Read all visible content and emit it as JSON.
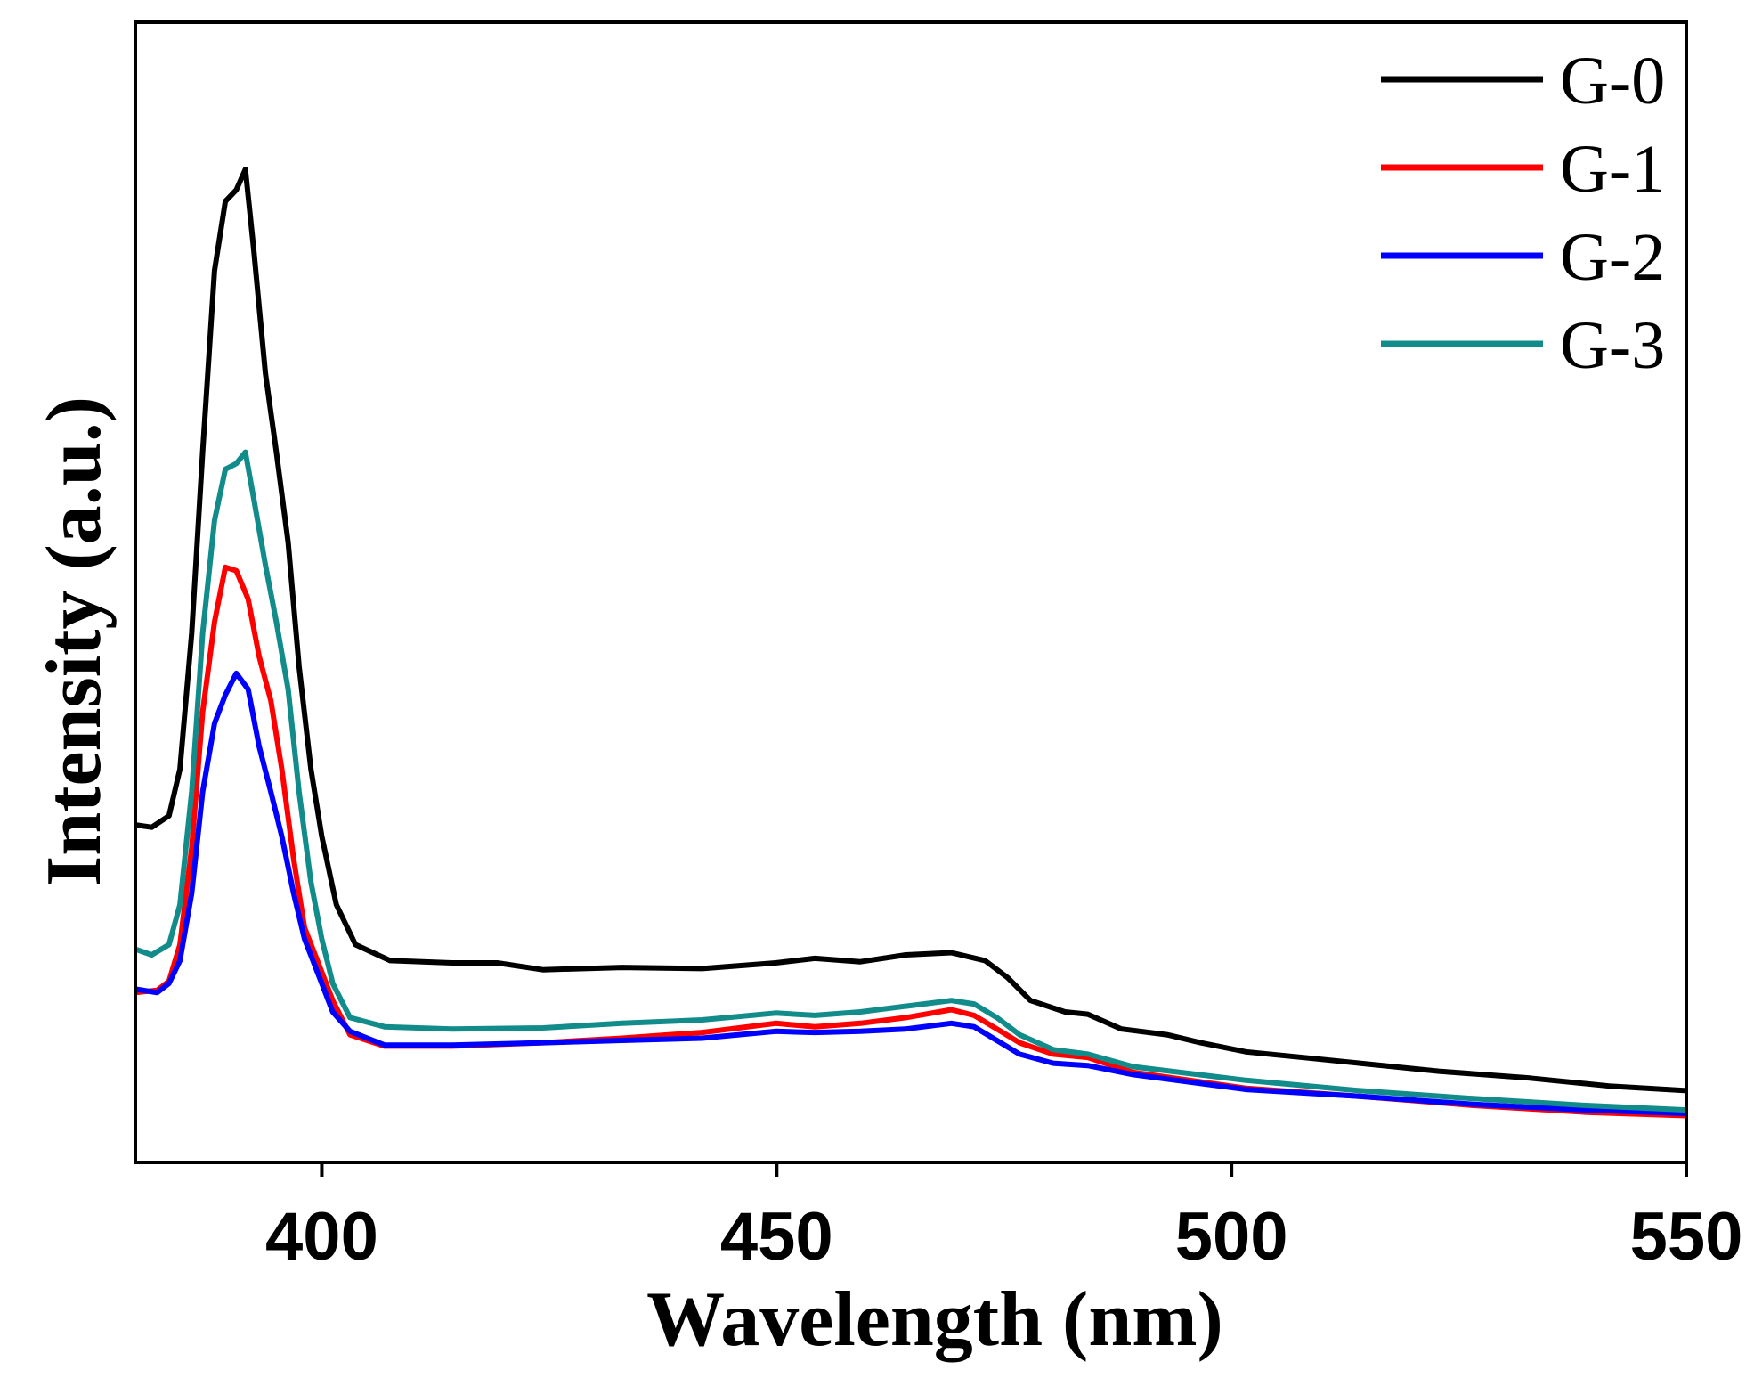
{
  "chart_data": {
    "type": "line",
    "xlabel": "Wavelength (nm)",
    "ylabel": "Intensity (a.u.)",
    "xlim": [
      379.5,
      550
    ],
    "ylim": [
      0,
      100
    ],
    "xticks": [
      400,
      450,
      500,
      550
    ],
    "xtick_labels": [
      "400",
      "450",
      "500",
      "550"
    ],
    "yticks": [],
    "grid": false,
    "legend_position": "top-right",
    "series": [
      {
        "name": "G-0",
        "color": "#000000",
        "x": [
          379.5,
          381.3,
          383.2,
          384.4,
          385.7,
          386.9,
          388.2,
          389.4,
          390.6,
          391.6,
          392.5,
          393.8,
          395.0,
          396.3,
          397.5,
          398.8,
          400.0,
          401.6,
          403.7,
          407.5,
          414.3,
          419.3,
          424.3,
          433.0,
          441.8,
          449.9,
          454.2,
          459.2,
          464.2,
          469.2,
          472.9,
          475.4,
          477.9,
          481.7,
          484.2,
          487.9,
          492.9,
          496.6,
          501.6,
          507.9,
          514.1,
          522.8,
          532.8,
          541.5,
          550.0
        ],
        "y": [
          29.6,
          29.4,
          30.4,
          34.5,
          46.4,
          62.3,
          78.2,
          84.3,
          85.3,
          87.1,
          80.2,
          69.2,
          62.3,
          54.4,
          43.5,
          34.5,
          28.6,
          22.6,
          19.1,
          17.7,
          17.5,
          17.5,
          16.9,
          17.1,
          17.0,
          17.5,
          17.9,
          17.6,
          18.2,
          18.4,
          17.7,
          16.2,
          14.2,
          13.2,
          13.0,
          11.7,
          11.2,
          10.5,
          9.7,
          9.2,
          8.7,
          8.0,
          7.4,
          6.7,
          6.3
        ]
      },
      {
        "name": "G-1",
        "color": "#ff0000",
        "x": [
          379.5,
          381.9,
          383.2,
          384.4,
          385.7,
          386.9,
          388.2,
          389.4,
          390.6,
          391.9,
          393.1,
          394.4,
          395.6,
          396.9,
          398.1,
          400.0,
          401.2,
          403.1,
          406.9,
          414.3,
          424.3,
          433.0,
          441.8,
          449.9,
          454.2,
          459.2,
          464.2,
          469.2,
          471.7,
          474.2,
          476.7,
          480.4,
          484.2,
          489.2,
          501.6,
          514.1,
          526.6,
          539.0,
          550.0
        ],
        "y": [
          14.9,
          15.1,
          15.9,
          19.1,
          27.6,
          39.5,
          47.4,
          52.2,
          51.9,
          49.4,
          44.4,
          40.5,
          34.5,
          26.6,
          20.6,
          16.7,
          14.2,
          11.2,
          10.2,
          10.2,
          10.5,
          10.9,
          11.4,
          12.2,
          11.9,
          12.2,
          12.7,
          13.4,
          12.9,
          11.7,
          10.5,
          9.5,
          9.2,
          7.9,
          6.5,
          5.8,
          5.0,
          4.4,
          4.1
        ]
      },
      {
        "name": "G-2",
        "color": "#0000ff",
        "x": [
          379.5,
          381.9,
          383.2,
          384.4,
          385.7,
          386.9,
          388.2,
          389.4,
          390.6,
          391.9,
          393.1,
          394.4,
          395.6,
          396.9,
          398.1,
          400.0,
          401.2,
          403.1,
          406.9,
          414.3,
          424.3,
          433.0,
          441.8,
          449.9,
          454.2,
          459.2,
          464.2,
          469.2,
          471.7,
          474.2,
          476.7,
          480.4,
          484.2,
          489.2,
          501.6,
          514.1,
          526.6,
          539.0,
          550.0
        ],
        "y": [
          15.2,
          14.9,
          15.7,
          17.7,
          23.6,
          32.5,
          38.5,
          41.0,
          42.9,
          41.5,
          36.5,
          32.5,
          28.6,
          23.6,
          19.6,
          15.7,
          13.2,
          11.5,
          10.3,
          10.3,
          10.5,
          10.7,
          10.9,
          11.5,
          11.4,
          11.5,
          11.7,
          12.2,
          11.9,
          10.7,
          9.5,
          8.7,
          8.5,
          7.7,
          6.4,
          5.8,
          5.1,
          4.6,
          4.3
        ]
      },
      {
        "name": "G-3",
        "color": "#118c8b",
        "x": [
          379.5,
          381.3,
          383.2,
          384.4,
          385.7,
          386.9,
          388.2,
          389.4,
          390.6,
          391.6,
          392.5,
          393.8,
          395.0,
          396.3,
          397.5,
          398.8,
          400.0,
          401.2,
          403.1,
          406.9,
          414.3,
          424.3,
          433.0,
          441.8,
          449.9,
          454.2,
          459.2,
          464.2,
          469.2,
          471.7,
          474.2,
          476.7,
          480.4,
          484.2,
          489.2,
          501.6,
          514.1,
          526.6,
          539.0,
          550.0
        ],
        "y": [
          18.7,
          18.2,
          19.1,
          22.6,
          32.5,
          46.4,
          56.3,
          60.8,
          61.3,
          62.3,
          58.3,
          52.4,
          47.4,
          41.5,
          32.5,
          24.6,
          19.6,
          15.7,
          12.7,
          11.9,
          11.7,
          11.8,
          12.2,
          12.5,
          13.1,
          12.9,
          13.2,
          13.7,
          14.2,
          13.9,
          12.7,
          11.2,
          9.9,
          9.5,
          8.4,
          7.2,
          6.3,
          5.6,
          5.0,
          4.6
        ]
      }
    ]
  }
}
